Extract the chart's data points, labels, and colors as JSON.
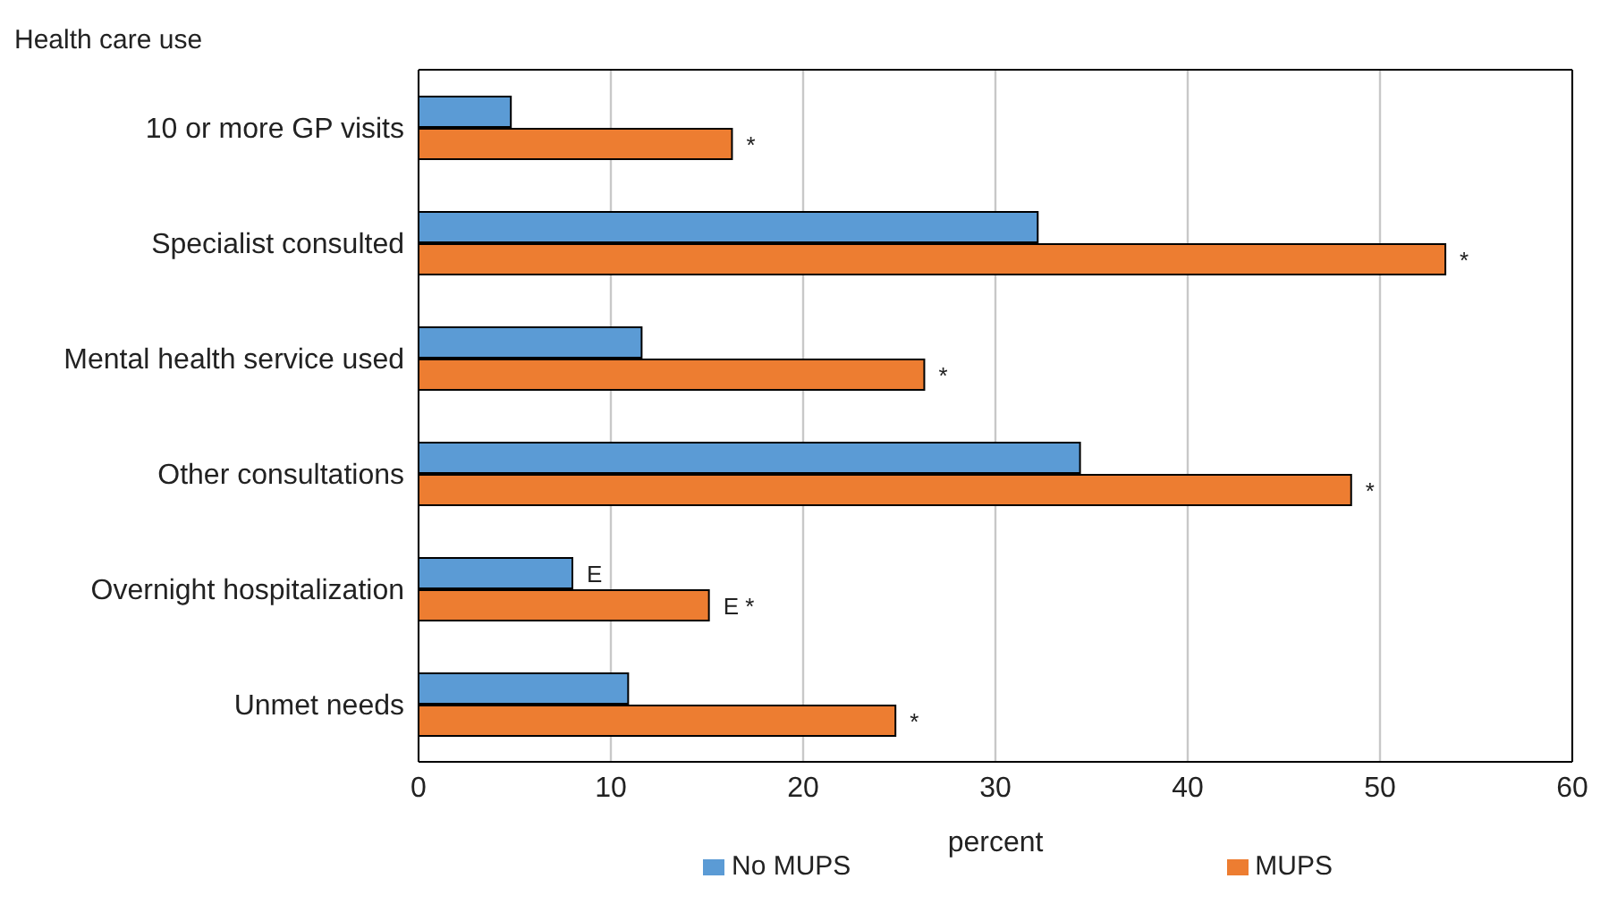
{
  "chart_data": {
    "type": "bar",
    "orientation": "horizontal",
    "ylabel": "Health care use",
    "xlabel": "percent",
    "categories": [
      "10 or more GP visits",
      "Specialist consulted",
      "Mental health service used",
      "Other consultations",
      "Overnight hospitalization",
      "Unmet needs"
    ],
    "series": [
      {
        "name": "No MUPS",
        "color": "#5b9bd5",
        "values": [
          4.8,
          32.2,
          11.6,
          34.4,
          8.0,
          10.9
        ],
        "value_labels": [
          null,
          null,
          null,
          null,
          "E",
          null
        ]
      },
      {
        "name": "MUPS",
        "color": "#ed7d31",
        "values": [
          16.3,
          53.4,
          26.3,
          48.5,
          15.1,
          24.8
        ],
        "value_labels": [
          "*",
          "*",
          "*",
          "*",
          "E *",
          "*"
        ]
      }
    ],
    "xlim": [
      0,
      60
    ],
    "xticks": [
      0,
      10,
      20,
      30,
      40,
      50,
      60
    ],
    "grid": "x",
    "legend": "bottom"
  }
}
